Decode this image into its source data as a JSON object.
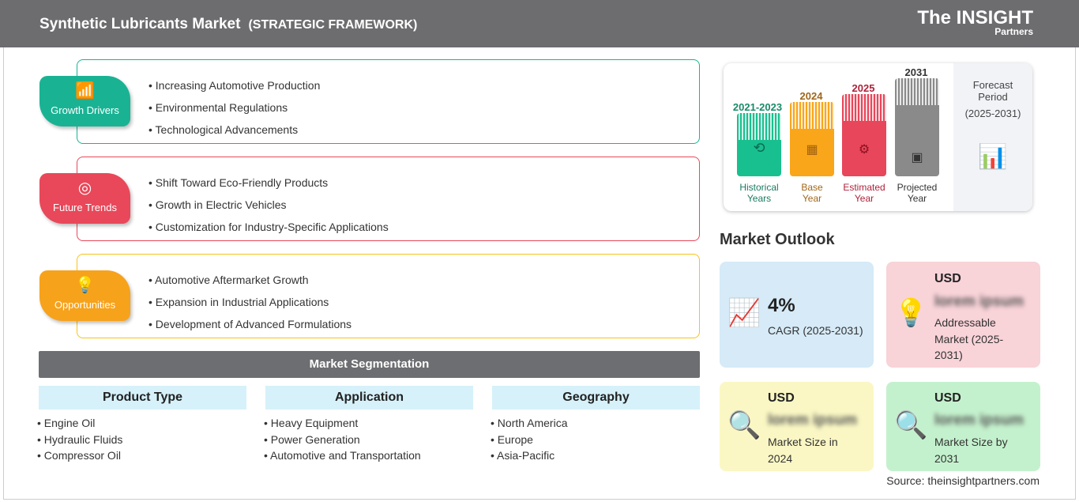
{
  "header": {
    "title": "Synthetic Lubricants Market",
    "subtitle": "(STRATEGIC FRAMEWORK)",
    "logo_line1": "The INSIGHT",
    "logo_line2": "Partners"
  },
  "framework": [
    {
      "label": "Growth Drivers",
      "icon": "bar-chart-up-icon",
      "color": "#19b394",
      "items": [
        "Increasing Automotive Production",
        "Environmental Regulations",
        "Technological Advancements"
      ]
    },
    {
      "label": "Future Trends",
      "icon": "target-icon",
      "color": "#e8485a",
      "items": [
        "Shift Toward Eco-Friendly Products",
        "Growth in Electric Vehicles",
        "Customization for Industry-Specific Applications"
      ]
    },
    {
      "label": "Opportunities",
      "icon": "lightbulb-hand-icon",
      "color": "#f7a21b",
      "items": [
        "Automotive Aftermarket Growth",
        "Expansion in Industrial Applications",
        "Development of Advanced Formulations"
      ]
    }
  ],
  "segmentation": {
    "title": "Market Segmentation",
    "columns": [
      {
        "header": "Product Type",
        "items": [
          "Engine Oil",
          "Hydraulic Fluids",
          "Compressor Oil"
        ]
      },
      {
        "header": "Application",
        "items": [
          "Heavy Equipment",
          "Power Generation",
          "Automotive and Transportation"
        ]
      },
      {
        "header": "Geography",
        "items": [
          "North America",
          "Europe",
          "Asia-Pacific"
        ]
      }
    ]
  },
  "timeline": {
    "bars": [
      {
        "year": "2021-2023",
        "label1": "Historical",
        "label2": "Years",
        "color": "#19c08f",
        "icon": "history-icon"
      },
      {
        "year": "2024",
        "label1": "Base",
        "label2": "Year",
        "color": "#f9a61a",
        "icon": "calendar-icon"
      },
      {
        "year": "2025",
        "label1": "Estimated",
        "label2": "Year",
        "color": "#e8465a",
        "icon": "gear-chart-icon"
      },
      {
        "year": "2031",
        "label1": "Projected",
        "label2": "Year",
        "color": "#8a8a8a",
        "icon": "presentation-icon"
      }
    ],
    "forecast_l1": "Forecast",
    "forecast_l2": "Period",
    "forecast_range": "(2025-2031)"
  },
  "outlook": {
    "title": "Market Outlook",
    "cagr": {
      "value": "4%",
      "label": "CAGR (2025-2031)"
    },
    "addressable": {
      "currency": "USD",
      "value": "lorem ipsum",
      "label": "Addressable Market (2025-2031)"
    },
    "size2024": {
      "currency": "USD",
      "value": "lorem ipsum",
      "label": "Market Size in 2024"
    },
    "size2031": {
      "currency": "USD",
      "value": "lorem ipsum",
      "label": "Market Size by 2031"
    }
  },
  "source": "Source: theinsightpartners.com"
}
